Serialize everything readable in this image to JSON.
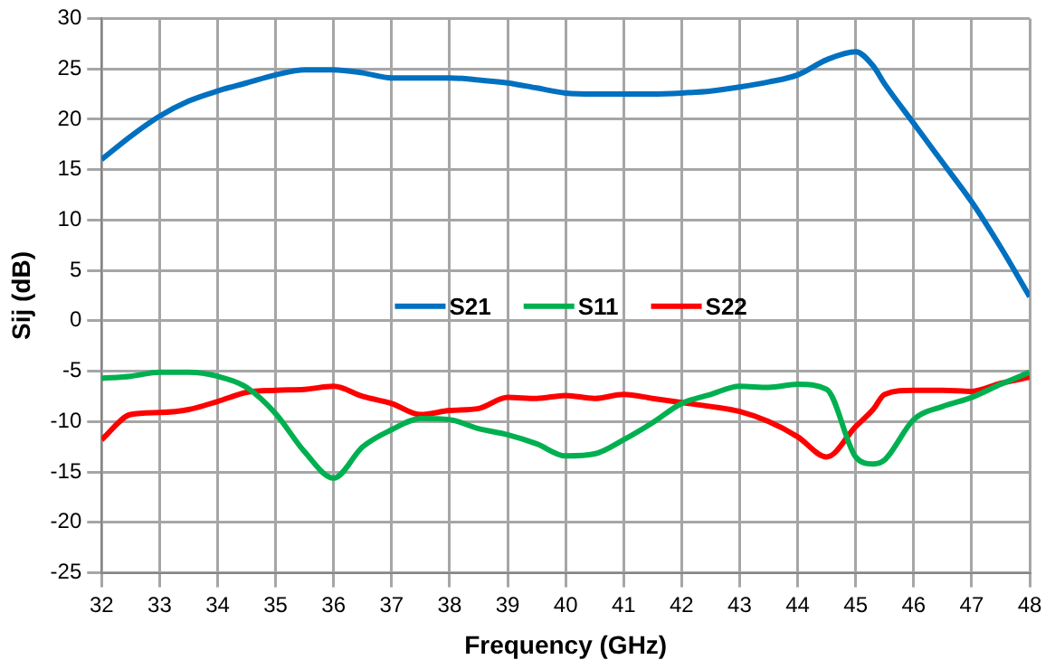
{
  "chart_data": {
    "type": "line",
    "xlabel": "Frequency (GHz)",
    "ylabel": "Sij (dB)",
    "x": [
      32,
      32.5,
      33,
      33.5,
      34,
      34.5,
      35,
      35.5,
      36,
      36.5,
      37,
      37.5,
      38,
      38.5,
      39,
      39.5,
      40,
      40.5,
      41,
      41.5,
      42,
      42.5,
      43,
      43.5,
      44,
      44.5,
      45,
      45.3,
      45.5,
      46,
      46.5,
      47,
      47.5,
      48
    ],
    "series": [
      {
        "name": "S21",
        "color": "#0070c0",
        "values": [
          16,
          18.3,
          20.3,
          21.8,
          22.8,
          23.6,
          24.4,
          24.9,
          24.9,
          24.6,
          24.1,
          24.1,
          24.1,
          23.9,
          23.6,
          23.1,
          22.6,
          22.5,
          22.5,
          22.5,
          22.6,
          22.8,
          23.2,
          23.7,
          24.4,
          25.9,
          26.7,
          25.3,
          23.5,
          19.6,
          15.7,
          11.8,
          7.3,
          2.4
        ]
      },
      {
        "name": "S11",
        "color": "#00b050",
        "values": [
          -5.7,
          -5.5,
          -5.1,
          -5.1,
          -5.5,
          -6.6,
          -9.2,
          -13,
          -15.6,
          -12.5,
          -10.8,
          -9.7,
          -9.8,
          -10.7,
          -11.3,
          -12.2,
          -13.4,
          -13.2,
          -11.8,
          -10.1,
          -8.2,
          -7.3,
          -6.5,
          -6.6,
          -6.3,
          -6.8,
          -13.5,
          -14.2,
          -13.8,
          -9.8,
          -8.5,
          -7.6,
          -6.3,
          -5.1
        ]
      },
      {
        "name": "S22",
        "color": "#ff0000",
        "values": [
          -11.8,
          -9.3,
          -9.1,
          -8.8,
          -8,
          -7.1,
          -6.9,
          -6.8,
          -6.5,
          -7.5,
          -8.2,
          -9.3,
          -8.9,
          -8.7,
          -7.6,
          -7.7,
          -7.4,
          -7.7,
          -7.3,
          -7.7,
          -8.1,
          -8.5,
          -9,
          -10,
          -11.5,
          -13.5,
          -10.5,
          -8.8,
          -7.3,
          -6.9,
          -6.9,
          -7,
          -6.2,
          -5.6
        ]
      }
    ],
    "xlim": [
      32,
      48
    ],
    "xticks": [
      32,
      33,
      34,
      35,
      36,
      37,
      38,
      39,
      40,
      41,
      42,
      43,
      44,
      45,
      46,
      47,
      48
    ],
    "ylim": [
      -25,
      30
    ],
    "yticks": [
      -25,
      -20,
      -15,
      -10,
      -5,
      0,
      5,
      10,
      15,
      20,
      25,
      30
    ],
    "grid": true,
    "legend": "center",
    "marker": "none",
    "line_style": "solid"
  }
}
